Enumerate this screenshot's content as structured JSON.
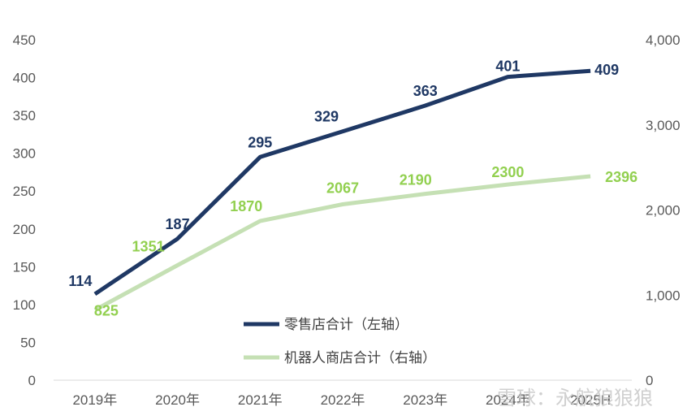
{
  "chart_data": {
    "type": "line",
    "categories": [
      "2019年",
      "2020年",
      "2021年",
      "2022年",
      "2023年",
      "2024年",
      "2025H"
    ],
    "series": [
      {
        "name": "零售店合计（左轴）",
        "axis": "left",
        "color": "#1f3864",
        "values": [
          114,
          187,
          295,
          329,
          363,
          401,
          409
        ]
      },
      {
        "name": "机器人商店合计（右轴）",
        "axis": "right",
        "color": "#c5e0b4",
        "label_color": "#92d050",
        "values": [
          825,
          1351,
          1870,
          2067,
          2190,
          2300,
          2396
        ]
      }
    ],
    "y_left": {
      "ylim": [
        0,
        450
      ],
      "ticks": [
        "0",
        "50",
        "100",
        "150",
        "200",
        "250",
        "300",
        "350",
        "400",
        "450"
      ]
    },
    "y_right": {
      "ylim": [
        0,
        4000
      ],
      "ticks": [
        "0",
        "1,000",
        "2,000",
        "3,000",
        "4,000"
      ]
    },
    "grid": false,
    "legend_position": "center-bottom",
    "title": "",
    "xlabel": "",
    "ylabel": ""
  },
  "watermark": {
    "text": "雪球：永航狼狼狼"
  }
}
